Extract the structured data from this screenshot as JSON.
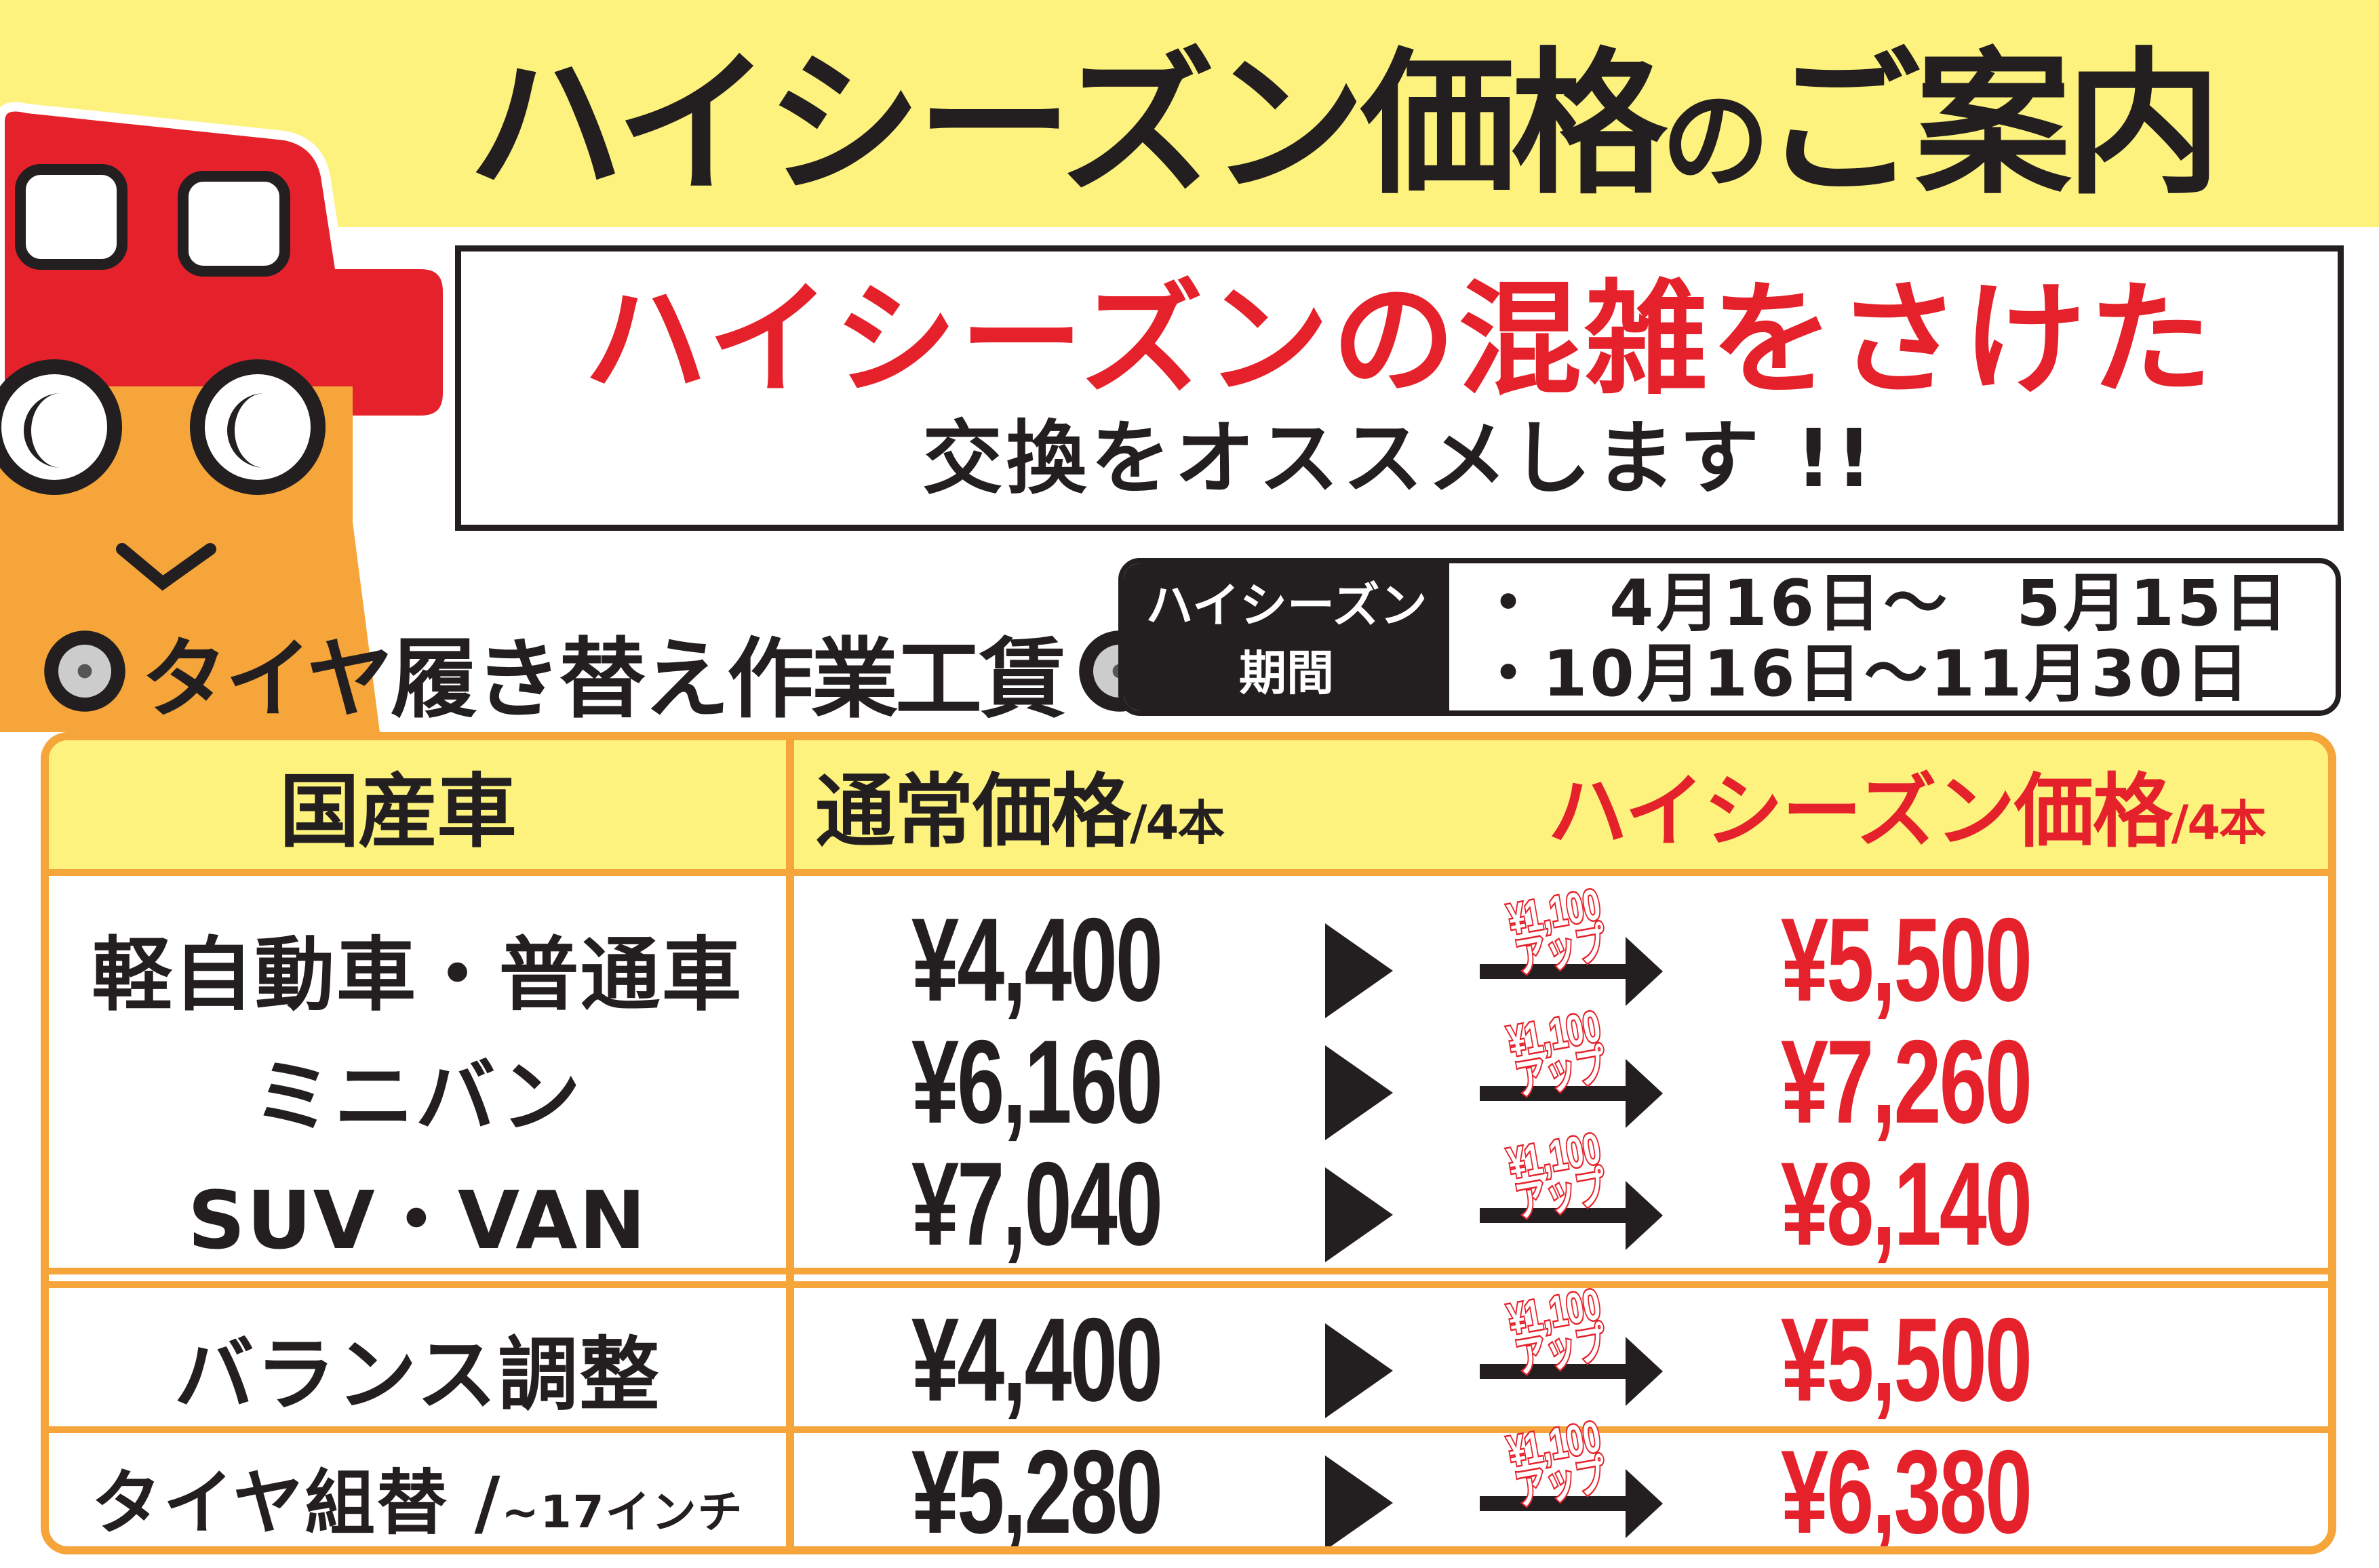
{
  "title": {
    "main": "ハイシーズン価格",
    "particle": "の",
    "rest": "ご案内"
  },
  "bubble": {
    "headline": "ハイシーズンの混雑をさけた",
    "sub": "交換をオススメします !!"
  },
  "work_label": "タイヤ履き替え作業工賃",
  "period": {
    "label_line1": "ハイシーズン",
    "label_line2": "期間",
    "dates": [
      "・　4月16日〜　5月15日",
      "・10月16日〜11月30日"
    ]
  },
  "table": {
    "headers": {
      "category": "国産車",
      "normal": "通常価格",
      "normal_unit": "/4本",
      "high": "ハイシーズン価格",
      "high_unit": "/4本"
    },
    "increase": {
      "amount": "¥1,100",
      "label": "アップ"
    },
    "rows": [
      {
        "category": "軽自動車・普通車",
        "normal": "¥4,400",
        "high": "¥5,500"
      },
      {
        "category": "ミニバン",
        "normal": "¥6,160",
        "high": "¥7,260"
      },
      {
        "category": "SUV・VAN",
        "normal": "¥7,040",
        "high": "¥8,140"
      },
      {
        "category": "バランス調整",
        "normal": "¥4,400",
        "high": "¥5,500"
      },
      {
        "category": "タイヤ組替 /",
        "category_note": "~17インチ",
        "normal": "¥5,280",
        "high": "¥6,380"
      }
    ]
  },
  "colors": {
    "red": "#e5222b",
    "yellow": "#fdf27e",
    "orange": "#f5a53a",
    "black": "#231f20"
  }
}
